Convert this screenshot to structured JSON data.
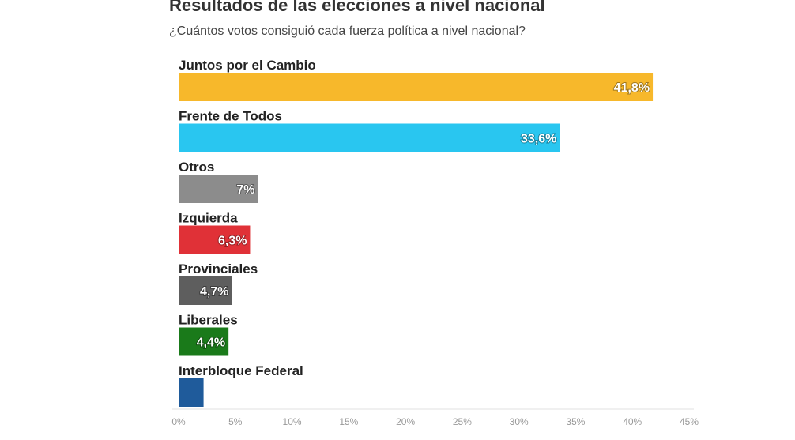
{
  "header": {
    "title": "Resultados de las elecciones a nivel nacional",
    "subtitle": "¿Cuántos votos consiguió cada fuerza política a nivel nacional?"
  },
  "chart_data": {
    "type": "bar",
    "orientation": "horizontal",
    "title": "Resultados de las elecciones a nivel nacional",
    "subtitle": "¿Cuántos votos consiguió cada fuerza política a nivel nacional?",
    "categories": [
      "Juntos por el Cambio",
      "Frente de Todos",
      "Otros",
      "Izquierda",
      "Provinciales",
      "Liberales",
      "Interbloque Federal"
    ],
    "values": [
      41.8,
      33.6,
      7,
      6.3,
      4.7,
      4.4,
      2.2
    ],
    "value_labels": [
      "41,8%",
      "33,6%",
      "7%",
      "6,3%",
      "4,7%",
      "4,4%",
      ""
    ],
    "colors": [
      "#f7b82b",
      "#29c6f0",
      "#8c8c8c",
      "#e03137",
      "#5e5e5e",
      "#1a7a1a",
      "#1f5b9b"
    ],
    "xlim": [
      0,
      45
    ],
    "xticks": [
      0,
      5,
      10,
      15,
      20,
      25,
      30,
      35,
      40,
      45
    ],
    "xtick_labels": [
      "0%",
      "5%",
      "10%",
      "15%",
      "20%",
      "25%",
      "30%",
      "35%",
      "40%",
      "45%"
    ],
    "xlabel": "",
    "ylabel": "",
    "grid": false
  }
}
